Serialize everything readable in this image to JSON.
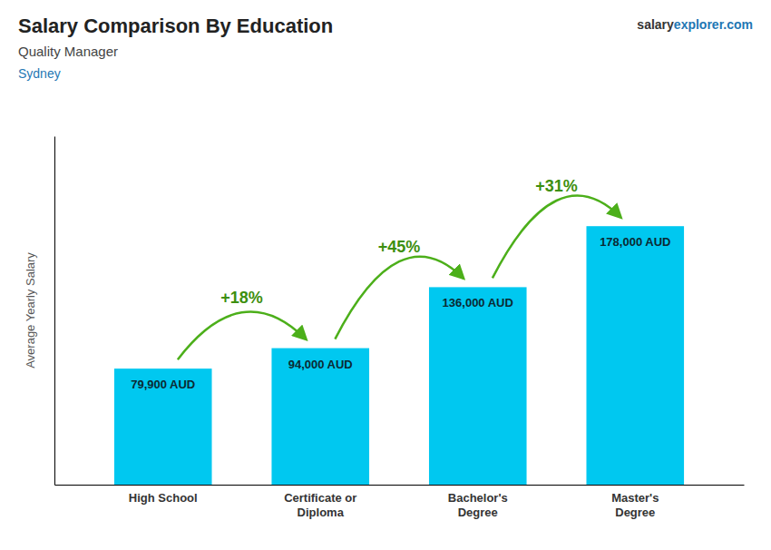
{
  "chart_data": {
    "type": "bar",
    "title": "Salary Comparison By Education",
    "subtitle": "Quality Manager",
    "ylabel": "Average Yearly Salary",
    "annotations": [
      "Sydney",
      "salary",
      "explorer.com"
    ],
    "categories": [
      "High School",
      "Certificate or\nDiploma",
      "Bachelor's\nDegree",
      "Master's\nDegree"
    ],
    "values": [
      79900,
      94000,
      136000,
      178000
    ],
    "value_labels": [
      "79,900 AUD",
      "94,000 AUD",
      "136,000 AUD",
      "178,000 AUD"
    ],
    "changes": [
      18,
      45,
      31
    ],
    "change_labels": [
      "+18%",
      "+45%",
      "+31%"
    ],
    "color": "#00c8f0",
    "ylim": [
      0,
      240000
    ],
    "data_labels": true,
    "tick_labels": "x",
    "grid": false
  }
}
